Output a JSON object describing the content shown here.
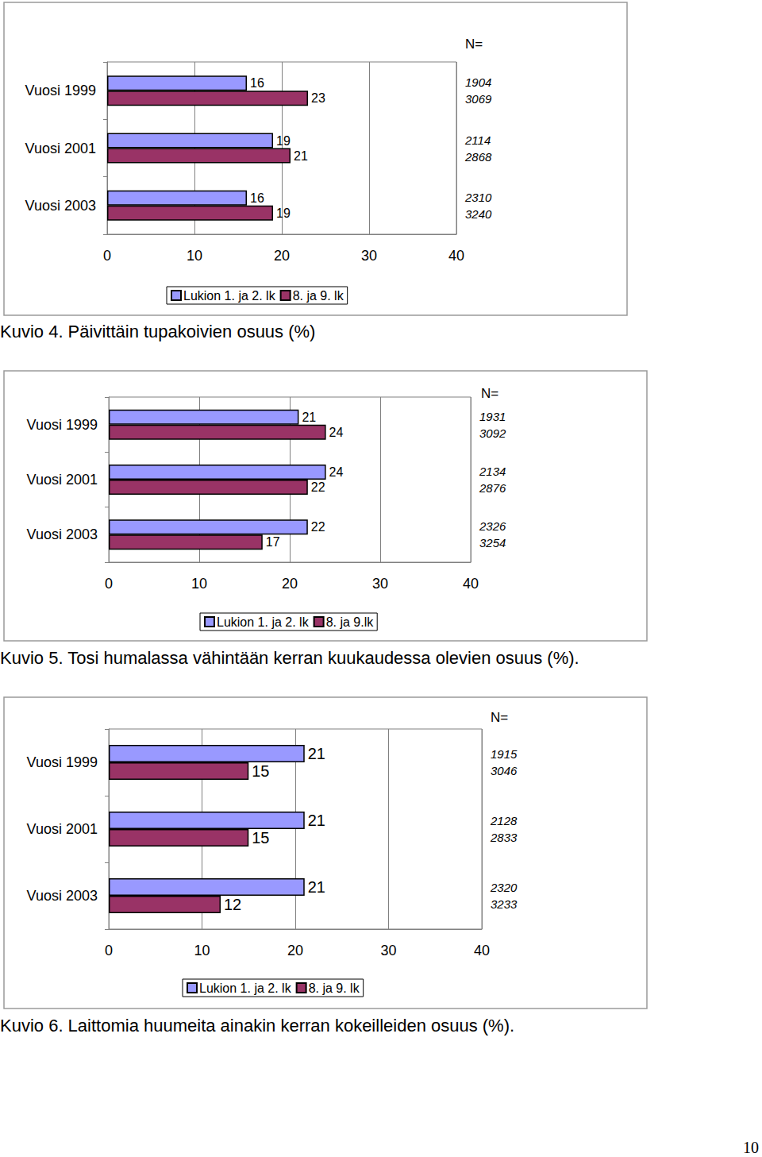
{
  "page_number": "10",
  "chart_data": [
    {
      "type": "bar",
      "orientation": "horizontal",
      "title": "Kuvio 4. Päivittäin tupakoivien osuus (%)",
      "categories": [
        "Vuosi 1999",
        "Vuosi 2001",
        "Vuosi 2003"
      ],
      "series": [
        {
          "name": "Lukion 1. ja 2. lk",
          "color": "#9999ff",
          "values": [
            16,
            19,
            16
          ],
          "n": [
            1904,
            2114,
            2310
          ]
        },
        {
          "name": "8. ja 9. lk",
          "color": "#993366",
          "values": [
            23,
            21,
            19
          ],
          "n": [
            3069,
            2868,
            3240
          ]
        }
      ],
      "n_label": "N=",
      "xlim": [
        0,
        40
      ],
      "xticks": [
        0,
        10,
        20,
        30,
        40
      ],
      "grid": true,
      "data_labels": true,
      "legend": "bottom"
    },
    {
      "type": "bar",
      "orientation": "horizontal",
      "title": "Kuvio 5. Tosi humalassa vähintään kerran kuukaudessa olevien osuus (%).",
      "categories": [
        "Vuosi 1999",
        "Vuosi 2001",
        "Vuosi 2003"
      ],
      "series": [
        {
          "name": "Lukion 1. ja 2. lk",
          "color": "#9999ff",
          "values": [
            21,
            24,
            22
          ],
          "n": [
            1931,
            2134,
            2326
          ]
        },
        {
          "name": "8. ja 9.lk",
          "color": "#993366",
          "values": [
            24,
            22,
            17
          ],
          "n": [
            3092,
            2876,
            3254
          ]
        }
      ],
      "n_label": "N=",
      "xlim": [
        0,
        40
      ],
      "xticks": [
        0,
        10,
        20,
        30,
        40
      ],
      "grid": true,
      "data_labels": true,
      "legend": "bottom"
    },
    {
      "type": "bar",
      "orientation": "horizontal",
      "title": "Kuvio 6. Laittomia huumeita ainakin kerran kokeilleiden osuus (%).",
      "categories": [
        "Vuosi 1999",
        "Vuosi 2001",
        "Vuosi 2003"
      ],
      "series": [
        {
          "name": "Lukion 1. ja 2. lk",
          "color": "#9999ff",
          "values": [
            21,
            21,
            21
          ],
          "n": [
            1915,
            2128,
            2320
          ]
        },
        {
          "name": "8. ja 9. lk",
          "color": "#993366",
          "values": [
            15,
            15,
            12
          ],
          "n": [
            3046,
            2833,
            3233
          ]
        }
      ],
      "n_label": "N=",
      "xlim": [
        0,
        40
      ],
      "xticks": [
        0,
        10,
        20,
        30,
        40
      ],
      "grid": true,
      "data_labels": true,
      "legend": "bottom"
    }
  ]
}
